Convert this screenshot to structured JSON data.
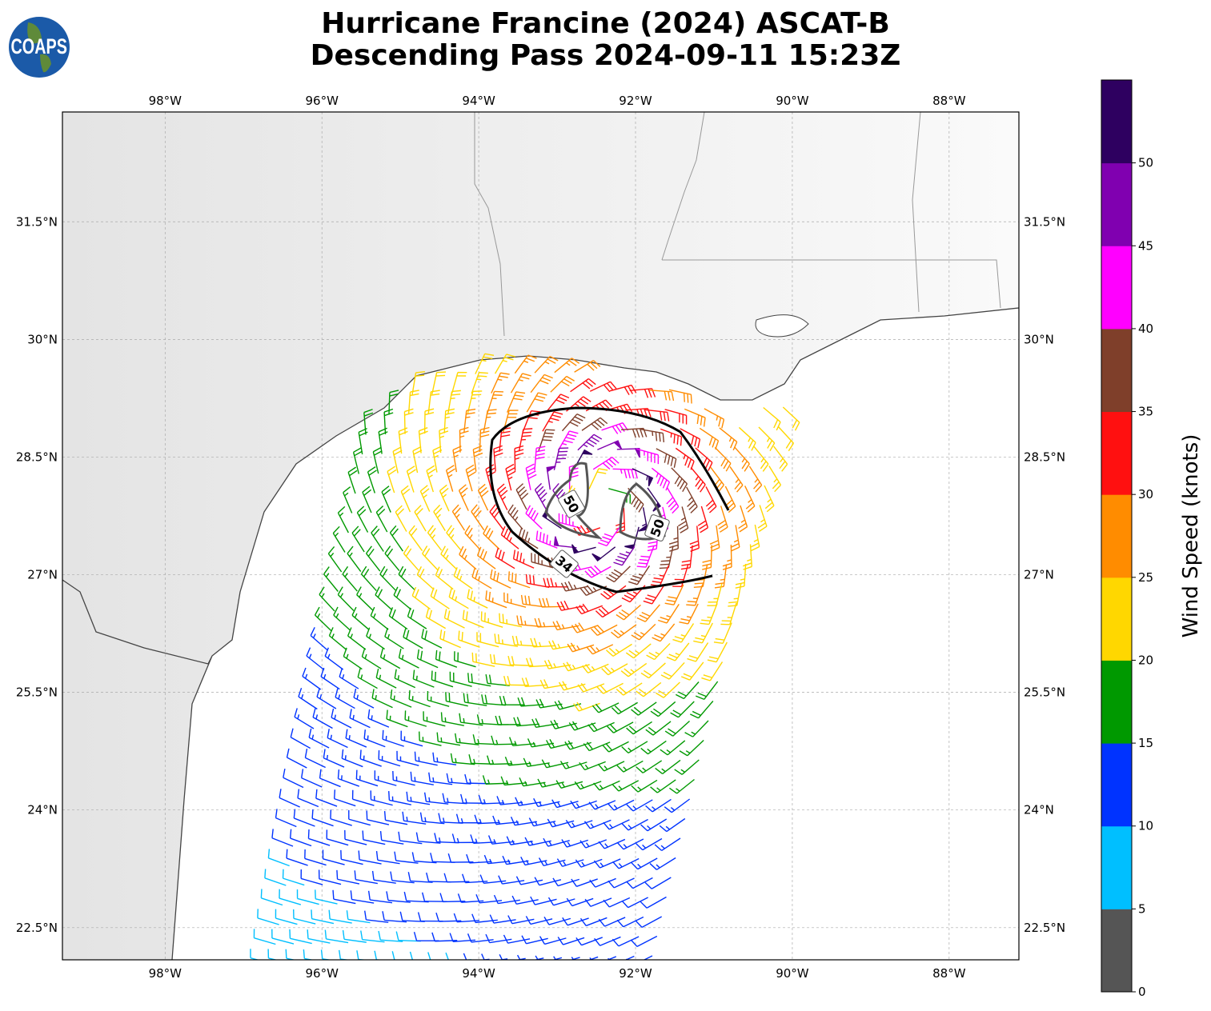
{
  "title": {
    "line1": "Hurricane Francine (2024) ASCAT-B",
    "line2": "Descending Pass 2024-09-11 15:23Z"
  },
  "logo": {
    "text": "COAPS"
  },
  "axes": {
    "lon_ticks": [
      {
        "value": -98,
        "label": "98°W"
      },
      {
        "value": -96,
        "label": "96°W"
      },
      {
        "value": -94,
        "label": "94°W"
      },
      {
        "value": -92,
        "label": "92°W"
      },
      {
        "value": -90,
        "label": "90°W"
      },
      {
        "value": -88,
        "label": "88°W"
      }
    ],
    "lat_ticks": [
      {
        "value": 22.5,
        "label": "22.5°N"
      },
      {
        "value": 24,
        "label": "24°N"
      },
      {
        "value": 25.5,
        "label": "25.5°N"
      },
      {
        "value": 27,
        "label": "27°N"
      },
      {
        "value": 28.5,
        "label": "28.5°N"
      },
      {
        "value": 30,
        "label": "30°N"
      },
      {
        "value": 31.5,
        "label": "31.5°N"
      }
    ],
    "lon_range": [
      -99.31,
      -87.11
    ],
    "lat_range": [
      22.09,
      32.9
    ]
  },
  "colorbar": {
    "label": "Wind Speed (knots)",
    "ticks": [
      "0",
      "5",
      "10",
      "15",
      "20",
      "25",
      "30",
      "35",
      "40",
      "45",
      "50"
    ],
    "bins": [
      0,
      5,
      10,
      15,
      20,
      25,
      30,
      35,
      40,
      45,
      50,
      55
    ],
    "colors": [
      "#555555",
      "#00bfff",
      "#0033ff",
      "#009900",
      "#ffd700",
      "#ff8c00",
      "#ff1010",
      "#7f3f2a",
      "#ff00ff",
      "#8000b0",
      "#2e0060"
    ]
  },
  "chart_data": {
    "type": "wind-barb-map",
    "storm_center": {
      "lon": -92.45,
      "lat": 27.95
    },
    "max_wind_kt": 55,
    "contours": [
      {
        "label": "34",
        "value": 34
      },
      {
        "label": "50",
        "value": 50
      },
      {
        "label": "50",
        "value": 50
      }
    ]
  }
}
